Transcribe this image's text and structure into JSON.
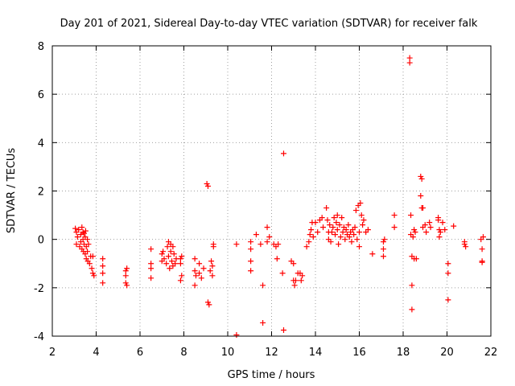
{
  "chart_data": {
    "type": "scatter",
    "title": "Day 201 of 2021, Sidereal Day-to-day VTEC variation (SDTVAR) for receiver falk",
    "xlabel": "GPS time / hours",
    "ylabel": "SDTVAR / TECUs",
    "xlim": [
      2,
      22
    ],
    "ylim": [
      -4,
      8
    ],
    "xticks": [
      2,
      4,
      6,
      8,
      10,
      12,
      14,
      16,
      18,
      20,
      22
    ],
    "yticks": [
      -4,
      -2,
      0,
      2,
      4,
      6,
      8
    ],
    "grid": true,
    "marker": "plus",
    "color": "#ff0000",
    "series": [
      {
        "name": "SDTVAR",
        "points": [
          [
            3.05,
            0.45
          ],
          [
            3.1,
            0.3
          ],
          [
            3.1,
            -0.2
          ],
          [
            3.15,
            0.1
          ],
          [
            3.2,
            0.4
          ],
          [
            3.25,
            -0.3
          ],
          [
            3.3,
            0.2
          ],
          [
            3.3,
            -0.1
          ],
          [
            3.35,
            0.5
          ],
          [
            3.35,
            -0.4
          ],
          [
            3.4,
            0.3
          ],
          [
            3.4,
            0.0
          ],
          [
            3.42,
            -0.5
          ],
          [
            3.45,
            0.25
          ],
          [
            3.45,
            -0.2
          ],
          [
            3.5,
            0.1
          ],
          [
            3.5,
            -0.6
          ],
          [
            3.52,
            0.35
          ],
          [
            3.55,
            -0.3
          ],
          [
            3.55,
            -0.8
          ],
          [
            3.6,
            0.0
          ],
          [
            3.6,
            -0.5
          ],
          [
            3.62,
            -0.9
          ],
          [
            3.65,
            -0.2
          ],
          [
            3.7,
            -1.0
          ],
          [
            3.75,
            -0.7
          ],
          [
            3.8,
            -1.2
          ],
          [
            3.85,
            -1.4
          ],
          [
            3.85,
            -0.7
          ],
          [
            3.9,
            -1.5
          ],
          [
            4.3,
            -0.8
          ],
          [
            4.3,
            -1.1
          ],
          [
            4.3,
            -1.4
          ],
          [
            4.3,
            -1.8
          ],
          [
            5.35,
            -1.3
          ],
          [
            5.35,
            -1.5
          ],
          [
            5.35,
            -1.8
          ],
          [
            5.4,
            -1.2
          ],
          [
            5.4,
            -1.9
          ],
          [
            6.5,
            -0.4
          ],
          [
            6.5,
            -1.0
          ],
          [
            6.5,
            -1.2
          ],
          [
            6.5,
            -1.6
          ],
          [
            7.0,
            -0.6
          ],
          [
            7.0,
            -0.9
          ],
          [
            7.05,
            -0.5
          ],
          [
            7.1,
            -0.8
          ],
          [
            7.2,
            -1.0
          ],
          [
            7.25,
            -0.3
          ],
          [
            7.3,
            -0.1
          ],
          [
            7.3,
            -0.7
          ],
          [
            7.35,
            -1.2
          ],
          [
            7.4,
            -0.2
          ],
          [
            7.4,
            -0.5
          ],
          [
            7.45,
            -0.9
          ],
          [
            7.5,
            -0.3
          ],
          [
            7.5,
            -1.1
          ],
          [
            7.55,
            -0.6
          ],
          [
            7.6,
            -1.0
          ],
          [
            7.65,
            -0.8
          ],
          [
            7.85,
            -0.8
          ],
          [
            7.85,
            -1.0
          ],
          [
            7.85,
            -1.7
          ],
          [
            7.9,
            -0.7
          ],
          [
            7.9,
            -1.5
          ],
          [
            8.5,
            -0.8
          ],
          [
            8.5,
            -1.3
          ],
          [
            8.5,
            -1.9
          ],
          [
            8.55,
            -1.5
          ],
          [
            8.7,
            -1.0
          ],
          [
            8.7,
            -1.4
          ],
          [
            8.8,
            -1.6
          ],
          [
            8.9,
            -1.2
          ],
          [
            9.05,
            2.3
          ],
          [
            9.1,
            2.2
          ],
          [
            9.1,
            -2.6
          ],
          [
            9.15,
            -2.7
          ],
          [
            9.2,
            -1.3
          ],
          [
            9.25,
            -0.9
          ],
          [
            9.3,
            -1.1
          ],
          [
            9.3,
            -1.5
          ],
          [
            9.35,
            -0.3
          ],
          [
            9.35,
            -0.2
          ],
          [
            10.4,
            -0.2
          ],
          [
            10.4,
            -3.95
          ],
          [
            11.05,
            -0.1
          ],
          [
            11.05,
            -0.4
          ],
          [
            11.05,
            -0.9
          ],
          [
            11.05,
            -1.3
          ],
          [
            11.3,
            0.2
          ],
          [
            11.5,
            -0.2
          ],
          [
            11.6,
            -1.9
          ],
          [
            11.6,
            -3.45
          ],
          [
            11.8,
            0.5
          ],
          [
            11.8,
            -0.1
          ],
          [
            11.9,
            0.1
          ],
          [
            12.1,
            -0.2
          ],
          [
            12.2,
            -0.3
          ],
          [
            12.25,
            -0.8
          ],
          [
            12.3,
            -0.2
          ],
          [
            12.5,
            -1.4
          ],
          [
            12.55,
            3.55
          ],
          [
            12.55,
            -3.75
          ],
          [
            12.9,
            -0.9
          ],
          [
            13.0,
            -1.0
          ],
          [
            13.0,
            -1.7
          ],
          [
            13.05,
            -1.9
          ],
          [
            13.1,
            -1.7
          ],
          [
            13.2,
            -1.4
          ],
          [
            13.3,
            -1.4
          ],
          [
            13.35,
            -1.7
          ],
          [
            13.4,
            -1.5
          ],
          [
            13.6,
            -0.3
          ],
          [
            13.7,
            -0.1
          ],
          [
            13.75,
            0.2
          ],
          [
            13.8,
            0.4
          ],
          [
            13.85,
            0.7
          ],
          [
            13.9,
            0.1
          ],
          [
            14.0,
            0.7
          ],
          [
            14.1,
            0.3
          ],
          [
            14.2,
            0.8
          ],
          [
            14.3,
            0.9
          ],
          [
            14.35,
            0.5
          ],
          [
            14.5,
            1.3
          ],
          [
            14.55,
            0.8
          ],
          [
            14.6,
            0.3
          ],
          [
            14.6,
            0.0
          ],
          [
            14.65,
            0.6
          ],
          [
            14.7,
            -0.1
          ],
          [
            14.75,
            0.3
          ],
          [
            14.8,
            0.5
          ],
          [
            14.85,
            0.9
          ],
          [
            14.9,
            0.2
          ],
          [
            14.95,
            0.7
          ],
          [
            15.0,
            1.0
          ],
          [
            15.0,
            0.4
          ],
          [
            15.05,
            -0.2
          ],
          [
            15.1,
            0.6
          ],
          [
            15.15,
            0.1
          ],
          [
            15.2,
            0.9
          ],
          [
            15.25,
            0.3
          ],
          [
            15.3,
            0.5
          ],
          [
            15.35,
            0.0
          ],
          [
            15.4,
            0.4
          ],
          [
            15.45,
            0.2
          ],
          [
            15.5,
            0.6
          ],
          [
            15.55,
            0.1
          ],
          [
            15.6,
            0.3
          ],
          [
            15.65,
            -0.1
          ],
          [
            15.7,
            0.4
          ],
          [
            15.75,
            0.2
          ],
          [
            15.8,
            0.5
          ],
          [
            15.85,
            1.2
          ],
          [
            15.9,
            0.0
          ],
          [
            15.95,
            1.4
          ],
          [
            16.0,
            0.3
          ],
          [
            16.0,
            -0.3
          ],
          [
            16.05,
            1.5
          ],
          [
            16.1,
            1.0
          ],
          [
            16.15,
            0.6
          ],
          [
            16.2,
            0.8
          ],
          [
            16.3,
            0.3
          ],
          [
            16.4,
            0.4
          ],
          [
            16.6,
            -0.6
          ],
          [
            17.1,
            -0.1
          ],
          [
            17.1,
            -0.4
          ],
          [
            17.1,
            -0.7
          ],
          [
            17.15,
            0.0
          ],
          [
            17.6,
            1.0
          ],
          [
            17.6,
            0.5
          ],
          [
            18.3,
            7.5
          ],
          [
            18.3,
            7.3
          ],
          [
            18.35,
            1.0
          ],
          [
            18.35,
            0.2
          ],
          [
            18.4,
            -0.7
          ],
          [
            18.4,
            -1.9
          ],
          [
            18.4,
            -2.9
          ],
          [
            18.45,
            0.1
          ],
          [
            18.5,
            -0.8
          ],
          [
            18.5,
            0.4
          ],
          [
            18.55,
            0.3
          ],
          [
            18.6,
            -0.8
          ],
          [
            18.8,
            2.6
          ],
          [
            18.8,
            1.8
          ],
          [
            18.85,
            2.5
          ],
          [
            18.85,
            1.3
          ],
          [
            18.9,
            0.5
          ],
          [
            18.9,
            1.3
          ],
          [
            19.0,
            0.6
          ],
          [
            19.05,
            0.3
          ],
          [
            19.2,
            0.7
          ],
          [
            19.25,
            0.5
          ],
          [
            19.6,
            0.9
          ],
          [
            19.6,
            0.8
          ],
          [
            19.65,
            0.4
          ],
          [
            19.65,
            0.1
          ],
          [
            19.7,
            0.3
          ],
          [
            19.8,
            0.7
          ],
          [
            19.9,
            0.4
          ],
          [
            20.05,
            -1.0
          ],
          [
            20.05,
            -1.4
          ],
          [
            20.05,
            -2.5
          ],
          [
            20.3,
            0.55
          ],
          [
            20.8,
            -0.1
          ],
          [
            20.8,
            -0.2
          ],
          [
            20.85,
            -0.3
          ],
          [
            21.55,
            0.0
          ],
          [
            21.6,
            -0.4
          ],
          [
            21.6,
            -0.9
          ],
          [
            21.6,
            -0.95
          ],
          [
            21.65,
            0.1
          ]
        ]
      }
    ]
  }
}
